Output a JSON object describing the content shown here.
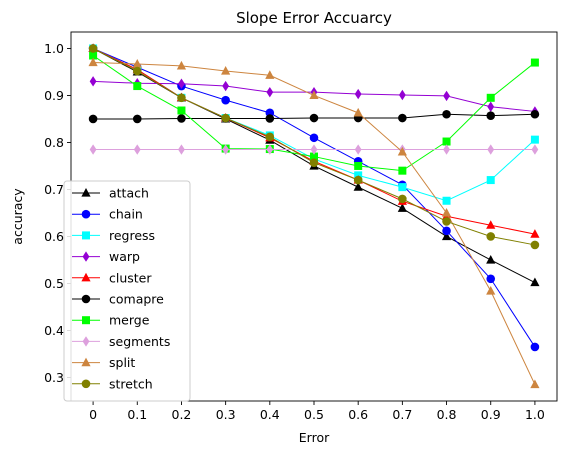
{
  "chart_data": {
    "type": "line",
    "title": "Slope Error Accuarcy",
    "xlabel": "Error",
    "ylabel": "accuracy",
    "x": [
      0,
      0.1,
      0.2,
      0.3,
      0.4,
      0.5,
      0.6,
      0.7,
      0.8,
      0.9,
      1.0
    ],
    "x_tick_labels": [
      "0",
      "0.1",
      "0.2",
      "0.3",
      "0.4",
      "0.5",
      "0.6",
      "0.7",
      "0.8",
      "0.9",
      "1.0"
    ],
    "y_ticks": [
      0.3,
      0.4,
      0.5,
      0.6,
      0.7,
      0.8,
      0.9,
      1.0
    ],
    "y_tick_labels": [
      "0.3",
      "0.4",
      "0.5",
      "0.6",
      "0.7",
      "0.8",
      "0.9",
      "1.0"
    ],
    "xlim": [
      -0.05,
      1.05
    ],
    "ylim": [
      0.25,
      1.035
    ],
    "grid": false,
    "legend_position": "lower-left",
    "series": [
      {
        "name": "attach",
        "color": "#000000",
        "marker": "triangle",
        "values": [
          1.0,
          0.95,
          0.895,
          0.85,
          0.805,
          0.75,
          0.705,
          0.66,
          0.6,
          0.55,
          0.502
        ]
      },
      {
        "name": "chain",
        "color": "#0000ff",
        "marker": "circle",
        "values": [
          1.0,
          0.96,
          0.92,
          0.89,
          0.863,
          0.81,
          0.76,
          0.71,
          0.612,
          0.51,
          0.365
        ]
      },
      {
        "name": "regress",
        "color": "#00ffff",
        "marker": "square",
        "values": [
          1.0,
          0.955,
          0.895,
          0.852,
          0.815,
          0.765,
          0.73,
          0.705,
          0.676,
          0.72,
          0.806
        ]
      },
      {
        "name": "warp",
        "color": "#9400d3",
        "marker": "diamond",
        "values": [
          0.93,
          0.926,
          0.925,
          0.92,
          0.907,
          0.907,
          0.903,
          0.901,
          0.899,
          0.876,
          0.866
        ]
      },
      {
        "name": "cluster",
        "color": "#ff0000",
        "marker": "triangle",
        "values": [
          1.0,
          0.955,
          0.895,
          0.852,
          0.81,
          0.76,
          0.72,
          0.675,
          0.643,
          0.624,
          0.605
        ]
      },
      {
        "name": "comapre",
        "color": "#000000",
        "marker": "circle",
        "values": [
          0.85,
          0.85,
          0.851,
          0.851,
          0.851,
          0.852,
          0.852,
          0.852,
          0.86,
          0.857,
          0.86
        ]
      },
      {
        "name": "merge",
        "color": "#00ff00",
        "marker": "square",
        "values": [
          0.985,
          0.92,
          0.868,
          0.787,
          0.786,
          0.77,
          0.75,
          0.74,
          0.802,
          0.895,
          0.97
        ]
      },
      {
        "name": "segments",
        "color": "#dda0dd",
        "marker": "diamond",
        "values": [
          0.785,
          0.785,
          0.785,
          0.785,
          0.785,
          0.785,
          0.785,
          0.785,
          0.785,
          0.785,
          0.785
        ]
      },
      {
        "name": "split",
        "color": "#cd853f",
        "marker": "triangle",
        "values": [
          0.97,
          0.967,
          0.963,
          0.952,
          0.943,
          0.9,
          0.863,
          0.78,
          0.65,
          0.484,
          0.285
        ]
      },
      {
        "name": "stretch",
        "color": "#808000",
        "marker": "circle",
        "values": [
          1.0,
          0.952,
          0.895,
          0.852,
          0.812,
          0.757,
          0.72,
          0.68,
          0.632,
          0.6,
          0.582
        ]
      }
    ]
  }
}
